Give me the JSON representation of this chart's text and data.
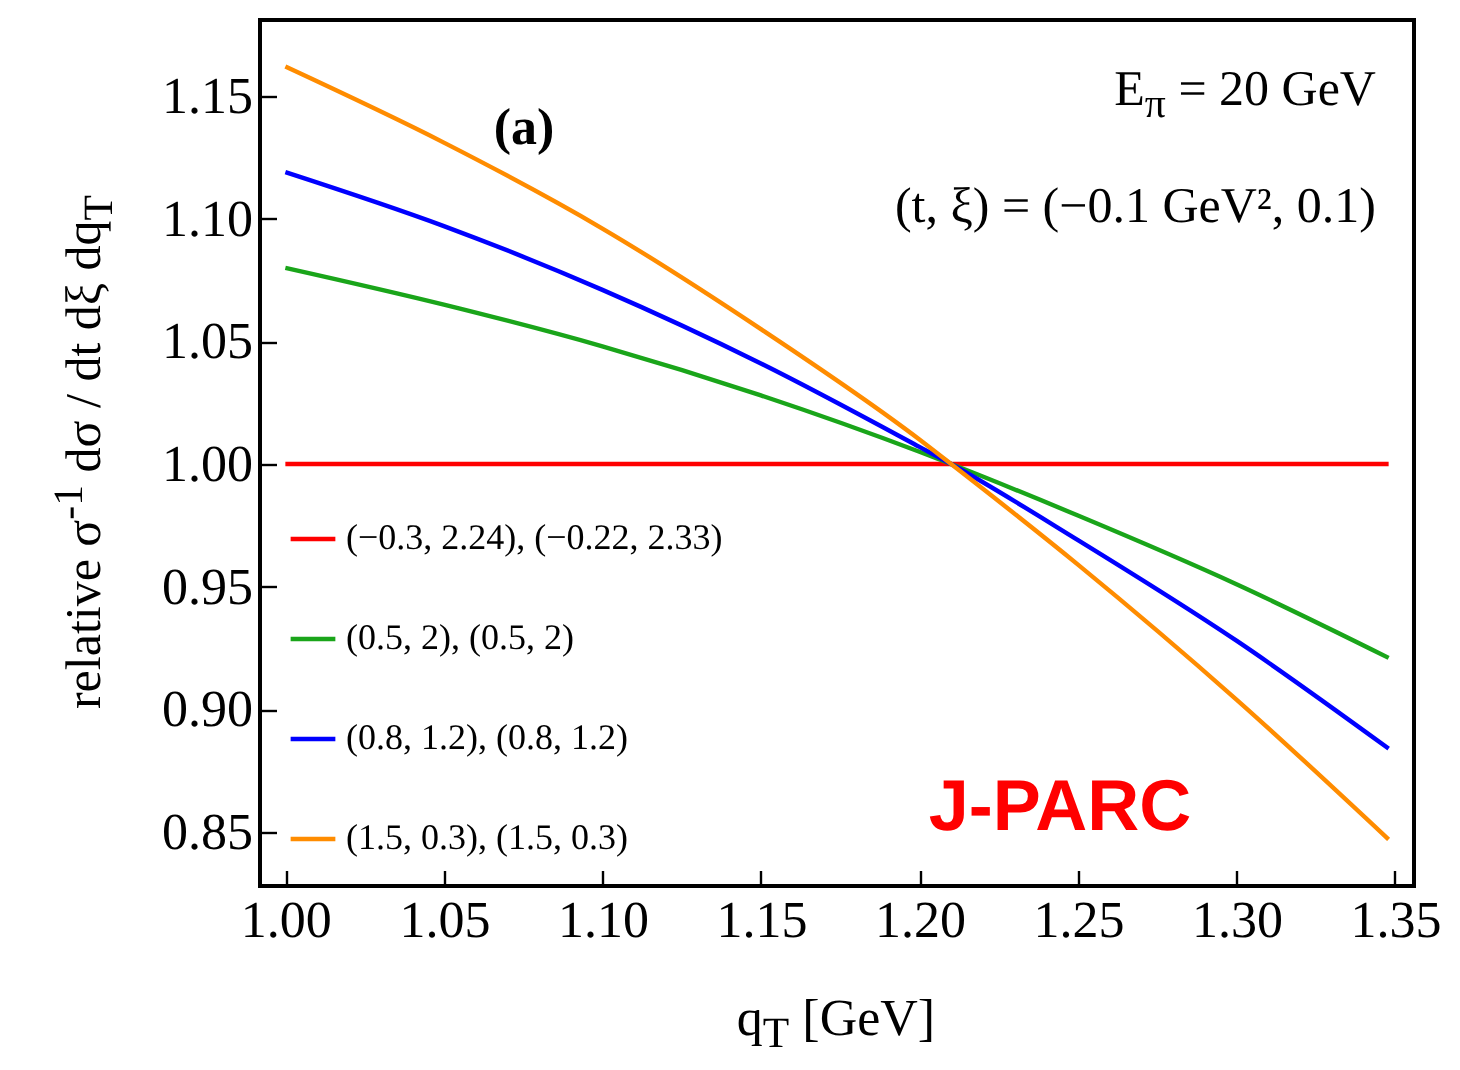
{
  "chart_data": {
    "type": "line",
    "xlabel": "q$_{T}$ [GeV]",
    "ylabel": "relative σ$^{-1}$ dσ / dt dξ dq$_{T}$",
    "xlim": [
      0.992,
      1.356
    ],
    "ylim": [
      0.828,
      1.181
    ],
    "xticks": [
      {
        "value": 1,
        "label": "1.00"
      },
      {
        "value": 1.05,
        "label": "1.05"
      },
      {
        "value": 1.1,
        "label": "1.10"
      },
      {
        "value": 1.15,
        "label": "1.15"
      },
      {
        "value": 1.2,
        "label": "1.20"
      },
      {
        "value": 1.25,
        "label": "1.25"
      },
      {
        "value": 1.3,
        "label": "1.30"
      },
      {
        "value": 1.35,
        "label": "1.35"
      }
    ],
    "yticks": [
      {
        "value": 0.85,
        "label": "0.85"
      },
      {
        "value": 0.9,
        "label": "0.90"
      },
      {
        "value": 0.95,
        "label": "0.95"
      },
      {
        "value": 1,
        "label": "1.00"
      },
      {
        "value": 1.05,
        "label": "1.05"
      },
      {
        "value": 1.1,
        "label": "1.10"
      },
      {
        "value": 1.15,
        "label": "1.15"
      }
    ],
    "x": [
      1,
      1.05,
      1.1,
      1.15,
      1.2,
      1.21,
      1.25,
      1.3,
      1.348
    ],
    "series": [
      {
        "name": "(−0.3, 2.24),  (−0.22, 2.33)",
        "color": "#ff0000",
        "values": [
          1,
          1,
          1,
          1,
          1,
          1,
          1,
          1,
          1
        ]
      },
      {
        "name": "(0.5, 2),  (0.5, 2)",
        "color": "#1aa51a",
        "values": [
          1.08,
          1.065,
          1.048,
          1.028,
          1.005,
          1.0,
          0.979,
          0.951,
          0.921
        ]
      },
      {
        "name": "(0.8, 1.2),  (0.8, 1.2)",
        "color": "#0000ff",
        "values": [
          1.119,
          1.097,
          1.071,
          1.041,
          1.007,
          1.0,
          0.969,
          0.928,
          0.884
        ]
      },
      {
        "name": "(1.5, 0.3),  (1.5, 0.3)",
        "color": "#ff8c00",
        "values": [
          1.162,
          1.131,
          1.096,
          1.055,
          1.01,
          1.0,
          0.959,
          0.904,
          0.847
        ]
      }
    ],
    "legend": "bottom left",
    "grid": false,
    "marker": "none",
    "line_style": "solid",
    "annotations": [
      "(a)",
      "E$_{π}$ = 20 GeV",
      "(t, ξ) = (−0.1 GeV², 0.1)",
      "J-PARC"
    ]
  }
}
